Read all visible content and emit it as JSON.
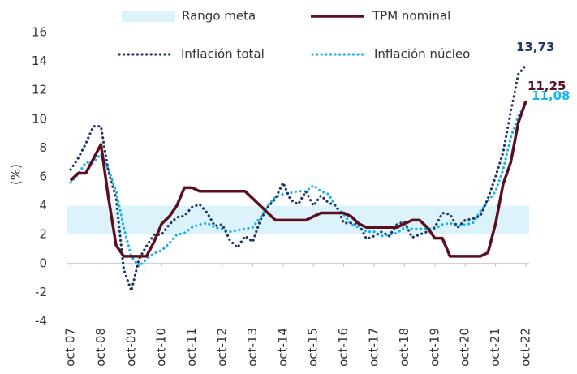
{
  "chart_data": {
    "type": "line",
    "y_label": "(%)",
    "categories": [
      "oct-07",
      null,
      null,
      null,
      "oct-08",
      null,
      null,
      null,
      "oct-09",
      null,
      null,
      null,
      "oct-10",
      null,
      null,
      null,
      "oct-11",
      null,
      null,
      null,
      "oct-12",
      null,
      null,
      null,
      "oct-13",
      null,
      null,
      null,
      "oct-14",
      null,
      null,
      null,
      "oct-15",
      null,
      null,
      null,
      "oct-16",
      null,
      null,
      null,
      "oct-17",
      null,
      null,
      null,
      "oct-18",
      null,
      null,
      null,
      "oct-19",
      null,
      null,
      null,
      "oct-20",
      null,
      null,
      null,
      "oct-21",
      null,
      null,
      null,
      "oct-22"
    ],
    "target_band": {
      "name": "Rango meta",
      "range": [
        2,
        4
      ],
      "color": "#ddf3fb"
    },
    "series": [
      {
        "name": "TPM nominal",
        "color": "#5b0f1e",
        "style": "solid",
        "end_label": "11,25",
        "values": [
          5.75,
          6.25,
          6.25,
          7.25,
          8.25,
          4.5,
          1.25,
          0.5,
          0.5,
          0.5,
          0.5,
          1.5,
          2.75,
          3.25,
          4.0,
          5.25,
          5.25,
          5.0,
          5.0,
          5.0,
          5.0,
          5.0,
          5.0,
          5.0,
          4.5,
          4.0,
          3.5,
          3.0,
          3.0,
          3.0,
          3.0,
          3.0,
          3.25,
          3.5,
          3.5,
          3.5,
          3.5,
          3.25,
          2.75,
          2.5,
          2.5,
          2.5,
          2.5,
          2.5,
          2.75,
          3.0,
          3.0,
          2.5,
          1.75,
          1.75,
          0.5,
          0.5,
          0.5,
          0.5,
          0.5,
          0.75,
          2.75,
          5.5,
          7.0,
          9.75,
          11.25
        ]
      },
      {
        "name": "Inflación total",
        "color": "#1f3864",
        "style": "dotted",
        "end_label": "13,73",
        "values": [
          6.5,
          7.3,
          8.3,
          9.5,
          9.5,
          6.3,
          4.5,
          -0.4,
          -1.9,
          0.3,
          1.2,
          2.0,
          2.0,
          2.7,
          3.2,
          3.3,
          3.9,
          4.1,
          3.5,
          2.6,
          2.7,
          1.6,
          1.1,
          1.9,
          1.5,
          3.0,
          3.9,
          4.5,
          5.6,
          4.4,
          4.1,
          5.0,
          4.0,
          4.7,
          4.2,
          4.0,
          2.8,
          2.8,
          2.7,
          1.7,
          1.9,
          2.2,
          1.9,
          2.7,
          2.9,
          1.8,
          2.0,
          2.2,
          2.5,
          3.5,
          3.4,
          2.5,
          3.0,
          3.1,
          3.3,
          4.5,
          6.0,
          7.7,
          10.5,
          13.1,
          13.73
        ]
      },
      {
        "name": "Inflación núcleo",
        "color": "#18b4e8",
        "style": "dotted",
        "end_label": "11,08",
        "values": [
          5.6,
          6.2,
          7.0,
          7.0,
          7.6,
          6.5,
          5.0,
          2.5,
          0.5,
          -0.2,
          0.3,
          0.7,
          0.9,
          1.4,
          2.0,
          2.1,
          2.5,
          2.7,
          2.8,
          2.5,
          2.4,
          2.2,
          2.3,
          2.4,
          2.5,
          3.2,
          4.0,
          4.6,
          4.8,
          4.9,
          5.0,
          5.0,
          5.4,
          5.0,
          4.8,
          3.9,
          3.4,
          2.7,
          2.5,
          2.2,
          2.2,
          1.9,
          2.0,
          2.1,
          2.5,
          2.4,
          2.4,
          2.4,
          2.4,
          2.7,
          2.8,
          2.6,
          2.7,
          2.8,
          3.6,
          4.3,
          5.0,
          6.5,
          8.7,
          10.2,
          11.08
        ]
      }
    ],
    "ylim": [
      -4,
      16
    ],
    "yticks": [
      -4,
      -2,
      0,
      2,
      4,
      6,
      8,
      10,
      12,
      14,
      16
    ],
    "grid": false
  }
}
